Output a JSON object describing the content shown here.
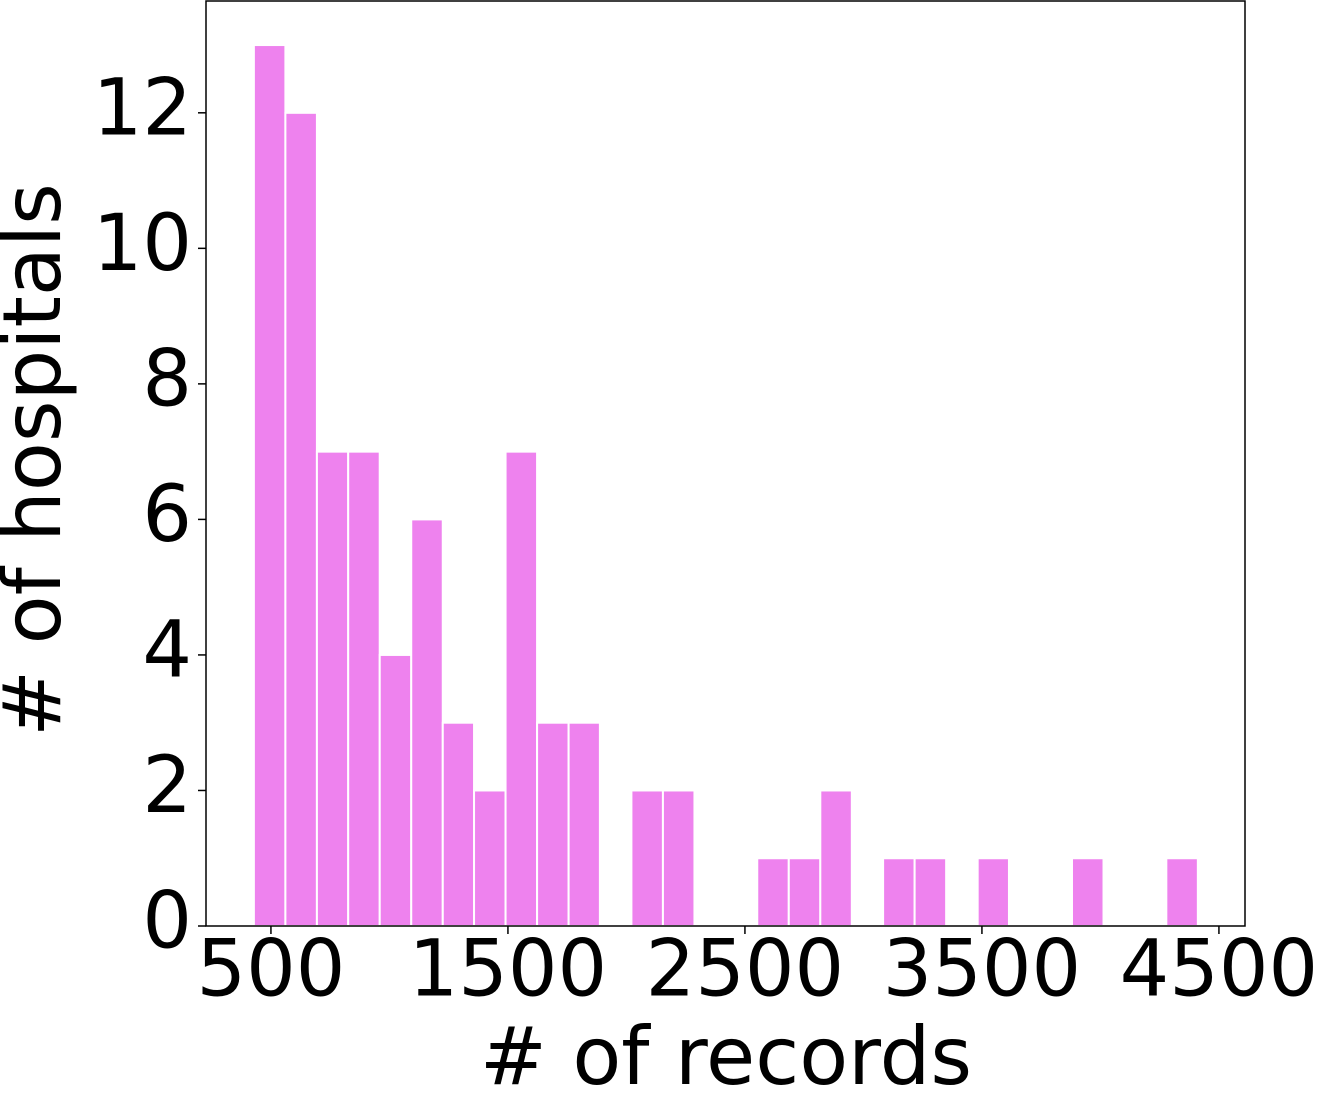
{
  "chart_data": {
    "type": "histogram",
    "x_label": "# of records",
    "y_label": "# of hospitals",
    "bins": [
      428,
      561,
      694,
      826,
      959,
      1092,
      1225,
      1357,
      1490,
      1623,
      1756,
      1888,
      2021,
      2154,
      2287,
      2420,
      2552,
      2685,
      2818,
      2951,
      3083,
      3216,
      3349,
      3482,
      3614,
      3747,
      3880,
      4013,
      4145,
      4278,
      4411
    ],
    "values": [
      13,
      12,
      7,
      7,
      4,
      6,
      3,
      2,
      7,
      3,
      3,
      0,
      2,
      2,
      0,
      0,
      1,
      1,
      2,
      0,
      1,
      1,
      0,
      1,
      0,
      0,
      1,
      0,
      0,
      1
    ],
    "color": "#ee82ee",
    "edge_color": "#ffffff",
    "xlim": [
      226,
      4610
    ],
    "ylim": [
      0,
      13.65
    ],
    "xticks": [
      500,
      1500,
      2500,
      3500,
      4500
    ],
    "yticks": [
      0,
      2,
      4,
      6,
      8,
      10,
      12
    ],
    "grid": false
  }
}
